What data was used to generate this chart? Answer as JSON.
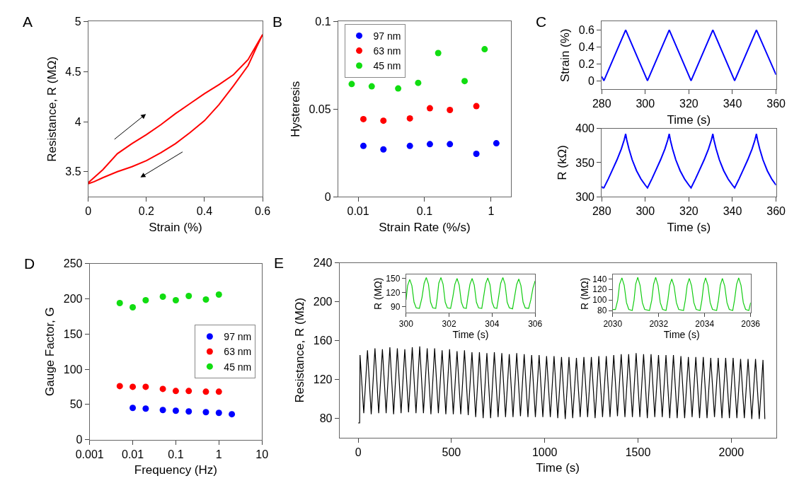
{
  "chart_data": [
    {
      "type": "line",
      "title": "A",
      "xlabel": "Strain (%)",
      "ylabel": "Resistance, R (MΩ)",
      "xlim": [
        0,
        0.6
      ],
      "ylim": [
        3.25,
        5
      ],
      "xticks": [
        0,
        0.2,
        0.4,
        0.6
      ],
      "yticks": [
        3.5,
        4,
        4.5,
        5
      ],
      "grid": false,
      "series": [
        {
          "color": "#ff0000",
          "x": [
            0,
            0.05,
            0.1,
            0.15,
            0.2,
            0.25,
            0.3,
            0.35,
            0.4,
            0.45,
            0.5,
            0.55,
            0.6,
            0.58,
            0.55,
            0.5,
            0.45,
            0.4,
            0.35,
            0.3,
            0.25,
            0.2,
            0.15,
            0.1,
            0.05,
            0.02,
            0
          ],
          "values": [
            3.39,
            3.52,
            3.68,
            3.78,
            3.87,
            3.97,
            4.08,
            4.18,
            4.28,
            4.37,
            4.47,
            4.62,
            4.87,
            4.75,
            4.56,
            4.36,
            4.17,
            4.01,
            3.89,
            3.78,
            3.69,
            3.61,
            3.55,
            3.5,
            3.44,
            3.4,
            3.38
          ]
        }
      ]
    },
    {
      "type": "scatter",
      "title": "B",
      "xlabel": "Strain Rate (%/s)",
      "ylabel": "Hysteresis",
      "log": "x",
      "xlim": [
        0.005,
        2
      ],
      "ylim": [
        0,
        0.1
      ],
      "xticks": [
        0.01,
        0.1,
        1
      ],
      "yticks": [
        0,
        0.05,
        0.1
      ],
      "legend": "top left",
      "marker": "circle",
      "grid": false,
      "series": [
        {
          "name": "97 nm",
          "color": "#0000ff",
          "x": [
            0.012,
            0.024,
            0.06,
            0.12,
            0.24,
            0.6,
            1.2
          ],
          "values": [
            0.029,
            0.027,
            0.029,
            0.03,
            0.03,
            0.0245,
            0.0305
          ]
        },
        {
          "name": "63 nm",
          "color": "#ff0000",
          "x": [
            0.012,
            0.024,
            0.06,
            0.12,
            0.24,
            0.6
          ],
          "values": [
            0.0443,
            0.0434,
            0.0447,
            0.0505,
            0.0495,
            0.0517
          ]
        },
        {
          "name": "45 nm",
          "color": "#11dd11",
          "x": [
            0.008,
            0.016,
            0.04,
            0.08,
            0.16,
            0.4,
            0.8
          ],
          "values": [
            0.0643,
            0.063,
            0.0618,
            0.065,
            0.082,
            0.066,
            0.0842
          ]
        }
      ]
    },
    {
      "type": "line",
      "title": "C",
      "xlabel": "Time (s)",
      "ylabel": "Strain (%)",
      "xlim": [
        280,
        360
      ],
      "ylim": [
        -0.1,
        0.7
      ],
      "xticks": [
        280,
        300,
        320,
        340,
        360
      ],
      "yticks": [
        0,
        0.2,
        0.4,
        0.6
      ],
      "grid": false,
      "series": [
        {
          "color": "#0000ff",
          "x": [
            280,
            281,
            291,
            301,
            311,
            321,
            331,
            341,
            351,
            360
          ],
          "values": [
            0.05,
            0,
            0.6,
            0,
            0.6,
            0,
            0.6,
            0,
            0.6,
            0.07
          ]
        }
      ]
    },
    {
      "type": "line",
      "xlabel": "Time (s)",
      "ylabel": "R (kΩ)",
      "xlim": [
        280,
        360
      ],
      "ylim": [
        300,
        400
      ],
      "xticks": [
        280,
        300,
        320,
        340,
        360
      ],
      "yticks": [
        300,
        350,
        400
      ],
      "grid": false,
      "series": [
        {
          "color": "#0000ff",
          "x": [
            280,
            280.5,
            281,
            283,
            285,
            287,
            289,
            290.3,
            291,
            291.5,
            292.5,
            294,
            296,
            298,
            300,
            301,
            303,
            305,
            307,
            309,
            310.3,
            311,
            311.5,
            312.5,
            314,
            316,
            318,
            320,
            321,
            323,
            325,
            327,
            329,
            330.3,
            331,
            331.5,
            332.5,
            334,
            336,
            338,
            340,
            341,
            343,
            345,
            347,
            349,
            350.3,
            351,
            351.5,
            352.5,
            354,
            356,
            358,
            360
          ],
          "values": [
            315,
            313,
            313,
            326,
            340,
            354,
            370,
            383,
            392,
            383,
            370,
            354,
            338,
            326,
            317,
            313,
            326,
            340,
            354,
            370,
            383,
            392,
            383,
            370,
            354,
            338,
            326,
            317,
            313,
            326,
            340,
            354,
            370,
            383,
            392,
            383,
            370,
            354,
            338,
            326,
            317,
            313,
            326,
            340,
            354,
            370,
            383,
            392,
            383,
            370,
            354,
            338,
            326,
            317
          ]
        }
      ]
    },
    {
      "type": "scatter",
      "title": "D",
      "xlabel": "Frequency (Hz)",
      "ylabel": "Gauge Factor, G",
      "log": "x",
      "xlim": [
        0.001,
        10
      ],
      "ylim": [
        0,
        250
      ],
      "xticks": [
        0.001,
        0.01,
        0.1,
        1,
        10
      ],
      "yticks": [
        0,
        50,
        100,
        150,
        200,
        250
      ],
      "legend": "right",
      "marker": "circle",
      "grid": false,
      "series": [
        {
          "name": "97 nm",
          "color": "#0000ff",
          "x": [
            0.01,
            0.02,
            0.05,
            0.1,
            0.2,
            0.5,
            1,
            2
          ],
          "values": [
            45,
            44,
            42,
            41,
            40,
            39,
            38,
            36
          ]
        },
        {
          "name": "63 nm",
          "color": "#ff0000",
          "x": [
            0.005,
            0.01,
            0.02,
            0.05,
            0.1,
            0.2,
            0.5,
            1
          ],
          "values": [
            76,
            75,
            75,
            72,
            69,
            69,
            68,
            68
          ]
        },
        {
          "name": "45 nm",
          "color": "#11dd11",
          "x": [
            0.005,
            0.01,
            0.02,
            0.05,
            0.1,
            0.2,
            0.5,
            1
          ],
          "values": [
            194,
            188,
            198,
            203,
            198,
            204,
            199,
            206
          ]
        }
      ]
    },
    {
      "type": "line",
      "title": "E",
      "xlabel": "Time (s)",
      "ylabel": "Resistance, R (MΩ)",
      "xlim": [
        -100,
        2240
      ],
      "ylim": [
        60,
        240
      ],
      "xticks": [
        0,
        500,
        1000,
        1500,
        2000
      ],
      "yticks": [
        80,
        120,
        160,
        200,
        240
      ],
      "grid": false,
      "series": [
        {
          "color": "#000000",
          "x": [
            0,
            8,
            10,
            30,
            50,
            70,
            90,
            110,
            130,
            150,
            170,
            190,
            210,
            230,
            250,
            270,
            290,
            310,
            330,
            350,
            370,
            390,
            410,
            430,
            450,
            470,
            490,
            510,
            530,
            550,
            570,
            590,
            610,
            630,
            650,
            670,
            690,
            710,
            730,
            750,
            770,
            790,
            810,
            830,
            850,
            870,
            890,
            910,
            930,
            950,
            970,
            990,
            1010,
            1030,
            1050,
            1070,
            1090,
            1110,
            1130,
            1150,
            1170,
            1190,
            1210,
            1230,
            1250,
            1270,
            1290,
            1310,
            1330,
            1350,
            1370,
            1390,
            1410,
            1430,
            1450,
            1470,
            1490,
            1510,
            1530,
            1550,
            1570,
            1590,
            1610,
            1630,
            1650,
            1670,
            1690,
            1710,
            1730,
            1750,
            1770,
            1790,
            1810,
            1830,
            1850,
            1870,
            1890,
            1910,
            1930,
            1950,
            1970,
            1990,
            2010,
            2030,
            2050,
            2070,
            2090,
            2110,
            2130,
            2150,
            2170,
            2180
          ],
          "values": [
            75,
            75,
            145,
            85,
            150,
            84,
            152,
            85,
            151,
            85,
            153,
            84,
            152,
            85,
            151,
            86,
            153,
            85,
            154,
            85,
            152,
            84,
            152,
            85,
            150,
            84,
            151,
            84,
            149,
            84,
            150,
            83,
            148,
            81,
            148,
            80,
            147,
            80,
            148,
            81,
            147,
            81,
            146,
            81,
            147,
            82,
            146,
            81,
            145,
            81,
            145,
            81,
            144,
            81,
            144,
            80,
            143,
            79,
            143,
            80,
            142,
            81,
            143,
            81,
            143,
            80,
            144,
            81,
            144,
            81,
            145,
            82,
            146,
            81,
            146,
            81,
            147,
            81,
            146,
            80,
            146,
            81,
            145,
            81,
            145,
            80,
            145,
            80,
            144,
            80,
            143,
            81,
            143,
            80,
            143,
            80,
            142,
            81,
            142,
            80,
            142,
            80,
            142,
            80,
            141,
            80,
            141,
            79,
            141,
            79,
            140,
            79
          ]
        }
      ]
    },
    {
      "type": "line",
      "xlabel": "Time (s)",
      "ylabel": "R (MΩ)",
      "xlim": [
        300,
        306
      ],
      "ylim": [
        78,
        158
      ],
      "xticks": [
        300,
        302,
        304,
        306
      ],
      "yticks": [
        90,
        120,
        150
      ],
      "grid": false,
      "series": [
        {
          "color": "#11cc11",
          "x": [
            300,
            300.07,
            300.17,
            300.27,
            300.37,
            300.47,
            300.62,
            300.74,
            300.84,
            300.94,
            301.04,
            301.14,
            301.24,
            301.38,
            301.45,
            301.52,
            301.62,
            301.72,
            301.82,
            301.92,
            302.07,
            302.17,
            302.27,
            302.37,
            302.47,
            302.57,
            302.67,
            302.8,
            302.87,
            302.97,
            303.07,
            303.17,
            303.27,
            303.37,
            303.52,
            303.6,
            303.7,
            303.8,
            303.9,
            304.0,
            304.1,
            304.22,
            304.3,
            304.4,
            304.5,
            304.6,
            304.7,
            304.8,
            304.95,
            305.04,
            305.14,
            305.24,
            305.34,
            305.44,
            305.54,
            305.7,
            305.8,
            305.9,
            306
          ],
          "values": [
            105,
            135,
            148,
            135,
            100,
            88,
            87,
            110,
            140,
            152,
            138,
            100,
            88,
            87,
            110,
            140,
            152,
            138,
            100,
            88,
            87,
            110,
            138,
            150,
            136,
            100,
            88,
            87,
            110,
            138,
            150,
            136,
            100,
            88,
            87,
            110,
            139,
            151,
            137,
            100,
            88,
            87,
            110,
            140,
            152,
            138,
            100,
            88,
            86,
            110,
            137,
            149,
            135,
            100,
            88,
            87,
            105,
            130,
            145
          ]
        }
      ]
    },
    {
      "type": "line",
      "xlabel": "Time (s)",
      "ylabel": "R (MΩ)",
      "xlim": [
        2030,
        2036
      ],
      "ylim": [
        76,
        148
      ],
      "xticks": [
        2030,
        2032,
        2034,
        2036
      ],
      "yticks": [
        80,
        100,
        120,
        140
      ],
      "grid": false,
      "series": [
        {
          "color": "#11cc11",
          "x": [
            2030,
            2030.12,
            2030.22,
            2030.3,
            2030.4,
            2030.5,
            2030.6,
            2030.7,
            2030.85,
            2030.93,
            2031.0,
            2031.09,
            2031.19,
            2031.29,
            2031.39,
            2031.6,
            2031.7,
            2031.78,
            2031.87,
            2031.97,
            2032.07,
            2032.17,
            2032.32,
            2032.4,
            2032.48,
            2032.57,
            2032.67,
            2032.77,
            2032.87,
            2033.08,
            2033.16,
            2033.24,
            2033.33,
            2033.43,
            2033.53,
            2033.63,
            2033.8,
            2033.88,
            2033.96,
            2034.04,
            2034.14,
            2034.24,
            2034.34,
            2034.52,
            2034.6,
            2034.68,
            2034.77,
            2034.87,
            2034.97,
            2035.07,
            2035.22,
            2035.3,
            2035.39,
            2035.48,
            2035.58,
            2035.68,
            2035.78,
            2035.92,
            2036
          ],
          "values": [
            82,
            82,
            100,
            130,
            142,
            128,
            95,
            82,
            80,
            100,
            130,
            143,
            128,
            95,
            82,
            80,
            100,
            130,
            143,
            128,
            95,
            82,
            80,
            100,
            128,
            140,
            126,
            95,
            82,
            80,
            100,
            128,
            141,
            127,
            95,
            82,
            80,
            100,
            130,
            142,
            128,
            95,
            82,
            80,
            100,
            128,
            141,
            127,
            95,
            82,
            80,
            100,
            130,
            142,
            128,
            95,
            82,
            80,
            95
          ]
        }
      ]
    }
  ]
}
